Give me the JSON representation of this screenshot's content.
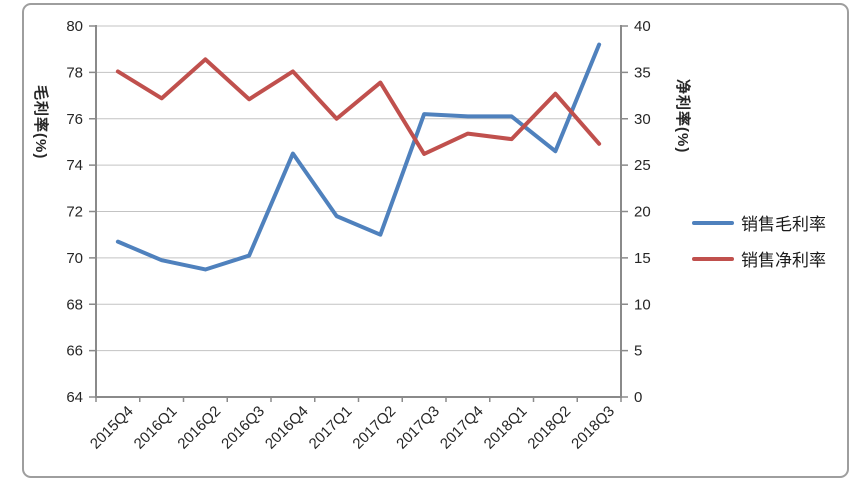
{
  "chart_data": {
    "type": "line",
    "categories": [
      "2015Q4",
      "2016Q1",
      "2016Q2",
      "2016Q3",
      "2016Q4",
      "2017Q1",
      "2017Q2",
      "2017Q3",
      "2017Q4",
      "2018Q1",
      "2018Q2",
      "2018Q3"
    ],
    "series": [
      {
        "name": "销售毛利率",
        "axis": "left",
        "color": "#4F81BD",
        "values": [
          70.7,
          69.9,
          69.5,
          70.1,
          74.5,
          71.8,
          71.0,
          76.2,
          76.1,
          76.1,
          74.6,
          79.2
        ]
      },
      {
        "name": "销售净利率",
        "axis": "right",
        "color": "#C0504D",
        "values": [
          35.1,
          32.2,
          36.4,
          32.1,
          35.1,
          30.0,
          33.9,
          26.2,
          28.4,
          27.8,
          32.7,
          27.3
        ]
      }
    ],
    "left_axis": {
      "title": "毛利率(%)",
      "min": 64,
      "max": 80,
      "step": 2
    },
    "right_axis": {
      "title": "净利率(%)",
      "min": 0,
      "max": 40,
      "step": 5
    },
    "legend_position": "right",
    "grid": true,
    "title": ""
  },
  "colors": {
    "gridline": "#c3c3c3",
    "axis_line": "#8a8a8a",
    "tick_label": "#262626",
    "frame_border": "#9e9e9e",
    "background": "#ffffff"
  }
}
